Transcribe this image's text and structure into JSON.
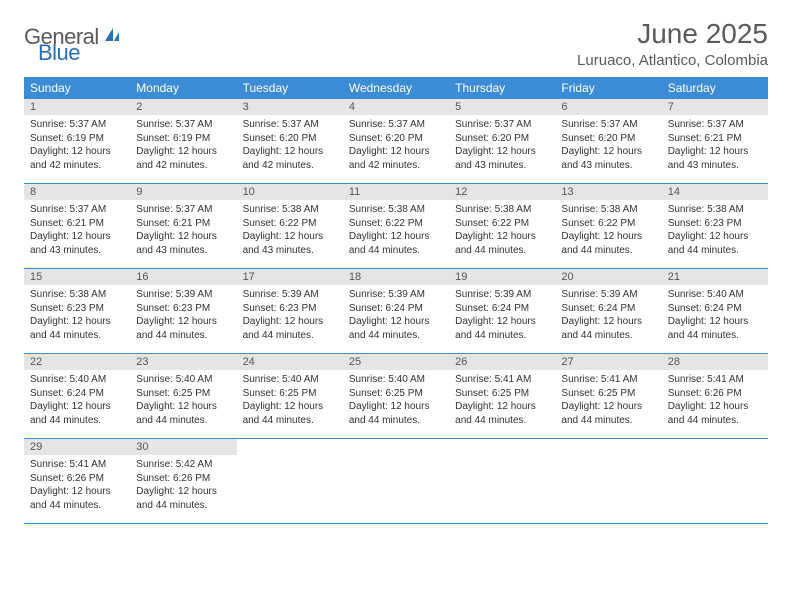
{
  "logo": {
    "general": "General",
    "blue": "Blue"
  },
  "title": "June 2025",
  "location": "Luruaco, Atlantico, Colombia",
  "colors": {
    "header_bg": "#3b8cd4",
    "header_text": "#ffffff",
    "daynum_bg": "#e5e5e5",
    "border": "#3b8cd4",
    "logo_gray": "#5a5a5a",
    "logo_blue": "#2a6fb5"
  },
  "day_names": [
    "Sunday",
    "Monday",
    "Tuesday",
    "Wednesday",
    "Thursday",
    "Friday",
    "Saturday"
  ],
  "labels": {
    "sunrise": "Sunrise:",
    "sunset": "Sunset:",
    "daylight": "Daylight:"
  },
  "weeks": [
    [
      {
        "n": "1",
        "sr": "5:37 AM",
        "ss": "6:19 PM",
        "dl": "12 hours and 42 minutes."
      },
      {
        "n": "2",
        "sr": "5:37 AM",
        "ss": "6:19 PM",
        "dl": "12 hours and 42 minutes."
      },
      {
        "n": "3",
        "sr": "5:37 AM",
        "ss": "6:20 PM",
        "dl": "12 hours and 42 minutes."
      },
      {
        "n": "4",
        "sr": "5:37 AM",
        "ss": "6:20 PM",
        "dl": "12 hours and 42 minutes."
      },
      {
        "n": "5",
        "sr": "5:37 AM",
        "ss": "6:20 PM",
        "dl": "12 hours and 43 minutes."
      },
      {
        "n": "6",
        "sr": "5:37 AM",
        "ss": "6:20 PM",
        "dl": "12 hours and 43 minutes."
      },
      {
        "n": "7",
        "sr": "5:37 AM",
        "ss": "6:21 PM",
        "dl": "12 hours and 43 minutes."
      }
    ],
    [
      {
        "n": "8",
        "sr": "5:37 AM",
        "ss": "6:21 PM",
        "dl": "12 hours and 43 minutes."
      },
      {
        "n": "9",
        "sr": "5:37 AM",
        "ss": "6:21 PM",
        "dl": "12 hours and 43 minutes."
      },
      {
        "n": "10",
        "sr": "5:38 AM",
        "ss": "6:22 PM",
        "dl": "12 hours and 43 minutes."
      },
      {
        "n": "11",
        "sr": "5:38 AM",
        "ss": "6:22 PM",
        "dl": "12 hours and 44 minutes."
      },
      {
        "n": "12",
        "sr": "5:38 AM",
        "ss": "6:22 PM",
        "dl": "12 hours and 44 minutes."
      },
      {
        "n": "13",
        "sr": "5:38 AM",
        "ss": "6:22 PM",
        "dl": "12 hours and 44 minutes."
      },
      {
        "n": "14",
        "sr": "5:38 AM",
        "ss": "6:23 PM",
        "dl": "12 hours and 44 minutes."
      }
    ],
    [
      {
        "n": "15",
        "sr": "5:38 AM",
        "ss": "6:23 PM",
        "dl": "12 hours and 44 minutes."
      },
      {
        "n": "16",
        "sr": "5:39 AM",
        "ss": "6:23 PM",
        "dl": "12 hours and 44 minutes."
      },
      {
        "n": "17",
        "sr": "5:39 AM",
        "ss": "6:23 PM",
        "dl": "12 hours and 44 minutes."
      },
      {
        "n": "18",
        "sr": "5:39 AM",
        "ss": "6:24 PM",
        "dl": "12 hours and 44 minutes."
      },
      {
        "n": "19",
        "sr": "5:39 AM",
        "ss": "6:24 PM",
        "dl": "12 hours and 44 minutes."
      },
      {
        "n": "20",
        "sr": "5:39 AM",
        "ss": "6:24 PM",
        "dl": "12 hours and 44 minutes."
      },
      {
        "n": "21",
        "sr": "5:40 AM",
        "ss": "6:24 PM",
        "dl": "12 hours and 44 minutes."
      }
    ],
    [
      {
        "n": "22",
        "sr": "5:40 AM",
        "ss": "6:24 PM",
        "dl": "12 hours and 44 minutes."
      },
      {
        "n": "23",
        "sr": "5:40 AM",
        "ss": "6:25 PM",
        "dl": "12 hours and 44 minutes."
      },
      {
        "n": "24",
        "sr": "5:40 AM",
        "ss": "6:25 PM",
        "dl": "12 hours and 44 minutes."
      },
      {
        "n": "25",
        "sr": "5:40 AM",
        "ss": "6:25 PM",
        "dl": "12 hours and 44 minutes."
      },
      {
        "n": "26",
        "sr": "5:41 AM",
        "ss": "6:25 PM",
        "dl": "12 hours and 44 minutes."
      },
      {
        "n": "27",
        "sr": "5:41 AM",
        "ss": "6:25 PM",
        "dl": "12 hours and 44 minutes."
      },
      {
        "n": "28",
        "sr": "5:41 AM",
        "ss": "6:26 PM",
        "dl": "12 hours and 44 minutes."
      }
    ],
    [
      {
        "n": "29",
        "sr": "5:41 AM",
        "ss": "6:26 PM",
        "dl": "12 hours and 44 minutes."
      },
      {
        "n": "30",
        "sr": "5:42 AM",
        "ss": "6:26 PM",
        "dl": "12 hours and 44 minutes."
      },
      null,
      null,
      null,
      null,
      null
    ]
  ]
}
